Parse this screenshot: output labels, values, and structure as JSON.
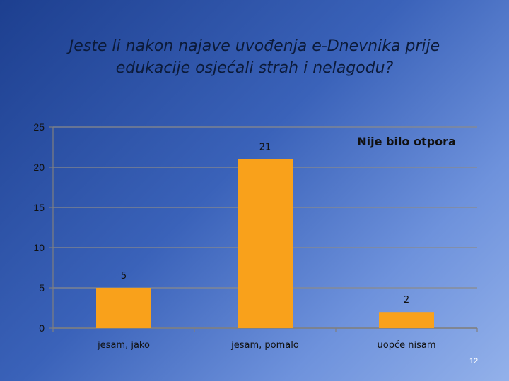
{
  "slide": {
    "title_lines": [
      "Jeste li nakon najave uvođenja e-Dnevnika prije",
      "edukacije osjećali strah i nelagodu?"
    ],
    "page_number": "12"
  },
  "colors": {
    "bar": "#f9a11b",
    "grid": "#8a8a8a",
    "axis": "#7f7f7f"
  },
  "chart_data": {
    "type": "bar",
    "title": "Jeste li nakon najave uvođenja e-Dnevnika prije edukacije osjećali strah i nelagodu?",
    "categories": [
      "jesam, jako",
      "jesam, pomalo",
      "uopće nisam"
    ],
    "values": [
      5,
      21,
      2
    ],
    "data_labels": [
      "5",
      "21",
      "2"
    ],
    "ylim": [
      0,
      25
    ],
    "yticks": [
      0,
      5,
      10,
      15,
      20,
      25
    ],
    "grid": true,
    "legend": "none",
    "annotations": [
      "Nije bilo otpora"
    ]
  }
}
